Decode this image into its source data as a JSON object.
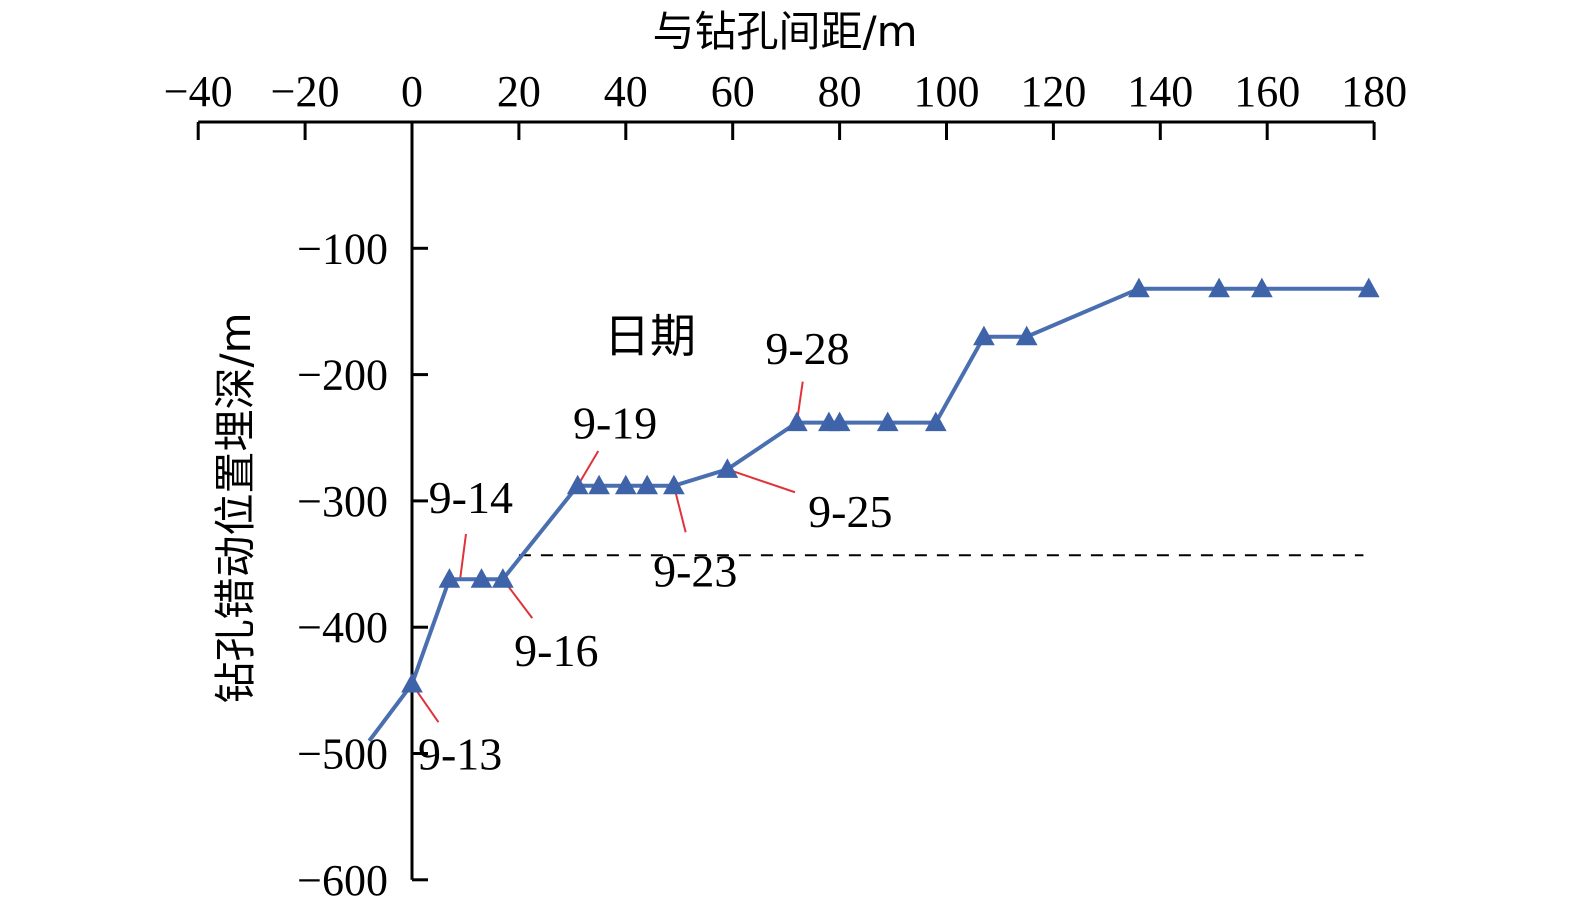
{
  "chart_data": {
    "type": "line",
    "xlabel": "与钻孔间距/m",
    "ylabel": "钻孔错动位置埋深/m",
    "legend_title": "日期",
    "xlim": [
      -40,
      180
    ],
    "ylim": [
      -600,
      0
    ],
    "x_ticks": [
      "−40",
      "−20",
      "0",
      "20",
      "40",
      "60",
      "80",
      "100",
      "120",
      "140",
      "160",
      "180"
    ],
    "y_ticks": [
      "−100",
      "−200",
      "−300",
      "−400",
      "−500",
      "−600"
    ],
    "x_axis_position": "top",
    "grid": false,
    "series": [
      {
        "color": "#4a6fb0",
        "marker": "triangle",
        "line_start": {
          "x": -8,
          "y": -490
        },
        "x": [
          0,
          7,
          13,
          17,
          31,
          35,
          40,
          44,
          49,
          59,
          72,
          78,
          80,
          89,
          98,
          107,
          115,
          136,
          151,
          159,
          179
        ],
        "y": [
          -445,
          -362,
          -362,
          -362,
          -288,
          -288,
          -288,
          -288,
          -288,
          -275,
          -238,
          -238,
          -238,
          -238,
          -238,
          -170,
          -170,
          -132,
          -132,
          -132,
          -132
        ]
      }
    ],
    "reference_line": {
      "style": "dashed",
      "y": -343,
      "x_range": [
        20,
        178
      ]
    },
    "annotations": [
      {
        "text": "9-13",
        "x": 0,
        "y": -445,
        "label_x": 9,
        "label_y": -500
      },
      {
        "text": "9-14",
        "x": 9,
        "y": -362,
        "label_x": 11,
        "label_y": -297
      },
      {
        "text": "9-16",
        "x": 17,
        "y": -362,
        "label_x": 27,
        "label_y": -418
      },
      {
        "text": "9-19",
        "x": 31,
        "y": -288,
        "label_x": 38,
        "label_y": -238
      },
      {
        "text": "9-23",
        "x": 49,
        "y": -288,
        "label_x": 53,
        "label_y": -355
      },
      {
        "text": "9-25",
        "x": 59,
        "y": -275,
        "label_x": 82,
        "label_y": -308
      },
      {
        "text": "9-28",
        "x": 72,
        "y": -238,
        "label_x": 74,
        "label_y": -179
      }
    ]
  }
}
